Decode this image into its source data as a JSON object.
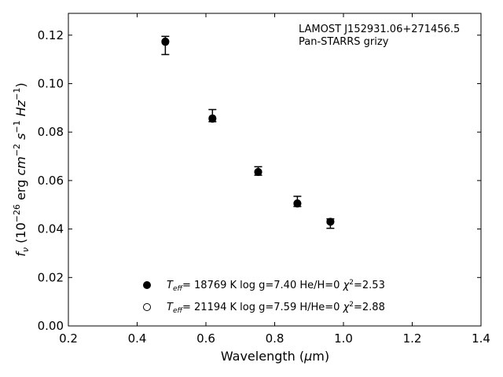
{
  "chart_data": {
    "type": "scatter",
    "title": "",
    "xlabel": "Wavelength (μm)",
    "ylabel": "f_ν (10^-26 erg cm^-2 s^-1 Hz^-1)",
    "xlim": [
      0.2,
      1.4
    ],
    "ylim": [
      0.0,
      0.129
    ],
    "xticks": [
      "0.2",
      "0.4",
      "0.6",
      "0.8",
      "1.0",
      "1.2",
      "1.4"
    ],
    "yticks": [
      "0.00",
      "0.02",
      "0.04",
      "0.06",
      "0.08",
      "0.10",
      "0.12"
    ],
    "grid": false,
    "annotation": [
      "LAMOST J152931.06+271456.5",
      "Pan-STARRS grizy"
    ],
    "observed": {
      "x": [
        0.482,
        0.619,
        0.752,
        0.866,
        0.962
      ],
      "y": [
        0.1165,
        0.0858,
        0.0637,
        0.051,
        0.0426
      ],
      "err_low": [
        0.0045,
        0.0015,
        0.0015,
        0.0017,
        0.0023
      ],
      "err_high": [
        0.003,
        0.0035,
        0.002,
        0.0025,
        0.0016
      ]
    },
    "series": [
      {
        "name": "T_eff= 18769 K  log g=7.40  He/H=0  χ²=2.53",
        "marker": "filled-circle",
        "x": [
          0.482,
          0.619,
          0.752,
          0.866,
          0.962
        ],
        "y": [
          0.1172,
          0.0855,
          0.0635,
          0.0505,
          0.043
        ]
      },
      {
        "name": "T_eff= 21194 K  log g=7.59  H/He=0  χ²=2.88",
        "marker": "open-circle",
        "x": [
          0.482,
          0.619,
          0.752,
          0.866,
          0.962
        ],
        "y": [
          0.1174,
          0.0857,
          0.0636,
          0.0506,
          0.043
        ]
      }
    ],
    "legend_position": "lower-center"
  }
}
